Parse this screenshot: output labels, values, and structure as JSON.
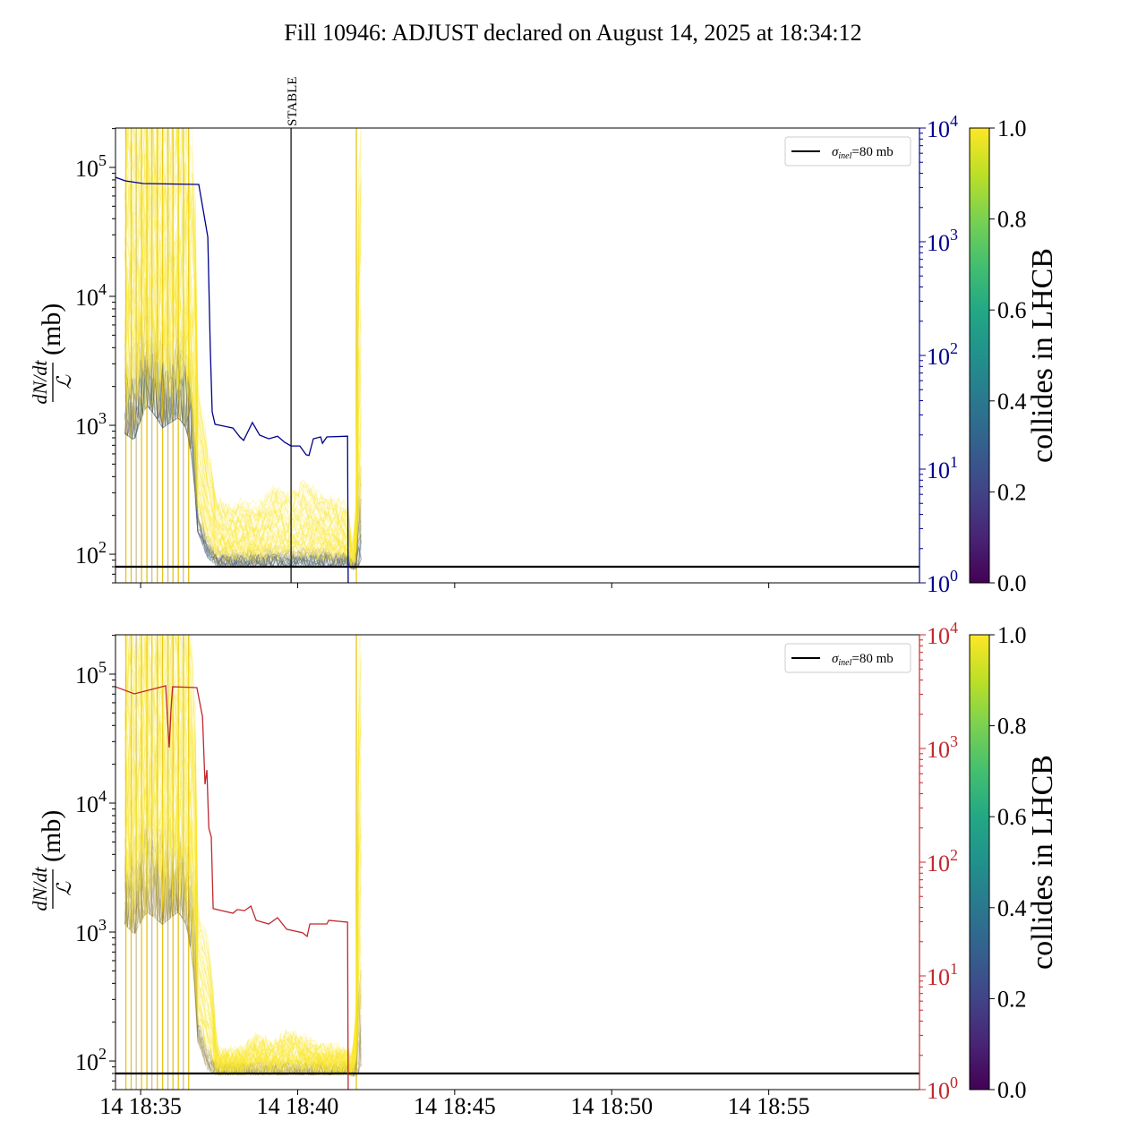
{
  "title": "Fill 10946: ADJUST declared on August 14, 2025 at 18:34:12",
  "chart_data": [
    {
      "type": "line",
      "panel": "top",
      "x_unit": "minutes after 14 18:34:12",
      "xlim": [
        0,
        25.6
      ],
      "x_tick_labels": [
        "14 18:35",
        "14 18:40",
        "14 18:45",
        "14 18:50",
        "14 18:55"
      ],
      "x_tick_values": [
        0.8,
        5.8,
        10.8,
        15.8,
        20.8
      ],
      "ylabel_num": "dN/dt",
      "ylabel_den": "ℒ",
      "ylabel_unit": "(mb)",
      "yscale": "log",
      "ylim": [
        60,
        202000
      ],
      "y_tick_exponents": [
        "2",
        "3",
        "4",
        "5"
      ],
      "y2_scale": "log",
      "y2lim": [
        1,
        10000
      ],
      "y2_tick_exponents": [
        "0",
        "1",
        "2",
        "3",
        "4"
      ],
      "y2_color": "#00008b",
      "annotation": {
        "label": "STABLE",
        "x": 5.59
      },
      "reference_line": {
        "value": 80,
        "legend": "σ",
        "legend_sub": "inel",
        "legend_rest": "=80 mb"
      },
      "bunch_envelope": {
        "t": [
          0.3,
          0.6,
          1.0,
          1.5,
          2.0,
          2.25,
          2.6,
          2.9,
          3.2,
          3.6,
          4.0,
          4.5,
          5.0,
          5.5,
          6.0,
          6.5,
          7.0,
          7.4,
          7.55,
          7.7,
          7.85
        ],
        "lower": [
          900,
          800,
          1500,
          1000,
          1200,
          1000,
          160,
          100,
          85,
          85,
          85,
          85,
          85,
          85,
          85,
          85,
          85,
          85,
          80,
          80,
          100
        ],
        "upper": [
          300000,
          300000,
          300000,
          300000,
          300000,
          250000,
          2000,
          700,
          250,
          220,
          250,
          220,
          320,
          280,
          350,
          280,
          250,
          220,
          90,
          300,
          300000
        ]
      },
      "vertical_lines_t": [
        0.33,
        0.5,
        0.66,
        0.83,
        1.0,
        1.16,
        1.33,
        1.5,
        1.67,
        1.83,
        2.0,
        2.16,
        2.33,
        7.67
      ],
      "series": [
        {
          "name": "right-axis series",
          "color": "#00008b",
          "t": [
            0,
            0.31,
            0.88,
            2.65,
            2.82,
            2.94,
            3.02,
            3.08,
            3.17,
            3.74,
            3.96,
            4.08,
            4.36,
            4.59,
            4.88,
            5.16,
            5.39,
            5.59,
            5.87,
            6.07,
            6.16,
            6.3,
            6.53,
            6.59,
            6.73,
            7.39,
            7.41
          ],
          "values": [
            3690,
            3430,
            3250,
            3190,
            1720,
            1100,
            113,
            31.9,
            24.8,
            23,
            19.2,
            17.9,
            25.7,
            19.9,
            18.5,
            19.5,
            17.2,
            16,
            16,
            13.4,
            13.2,
            18.5,
            19.2,
            16.9,
            19.2,
            19.5,
            1
          ]
        }
      ],
      "colorbar": {
        "label": "collides in LHCB",
        "ticks": [
          "0.0",
          "0.2",
          "0.4",
          "0.6",
          "0.8",
          "1.0"
        ],
        "range": [
          0,
          1
        ]
      }
    },
    {
      "type": "line",
      "panel": "bottom",
      "x_unit": "minutes after 14 18:34:12",
      "xlim": [
        0,
        25.6
      ],
      "x_tick_labels": [
        "14 18:35",
        "14 18:40",
        "14 18:45",
        "14 18:50",
        "14 18:55"
      ],
      "x_tick_values": [
        0.8,
        5.8,
        10.8,
        15.8,
        20.8
      ],
      "ylabel_num": "dN/dt",
      "ylabel_den": "ℒ",
      "ylabel_unit": "(mb)",
      "yscale": "log",
      "ylim": [
        60,
        202000
      ],
      "y_tick_exponents": [
        "2",
        "3",
        "4",
        "5"
      ],
      "y2_scale": "log",
      "y2lim": [
        1,
        10000
      ],
      "y2_tick_exponents": [
        "0",
        "1",
        "2",
        "3",
        "4"
      ],
      "y2_color": "#c0282d",
      "reference_line": {
        "value": 80,
        "legend": "σ",
        "legend_sub": "inel",
        "legend_rest": "=80 mb"
      },
      "bunch_envelope": {
        "t": [
          0.3,
          0.6,
          1.0,
          1.5,
          2.0,
          2.25,
          2.6,
          2.9,
          3.2,
          3.6,
          4.0,
          4.5,
          5.0,
          5.5,
          6.0,
          6.5,
          7.0,
          7.4,
          7.55,
          7.7,
          7.85
        ],
        "lower": [
          1200,
          1000,
          1500,
          1200,
          1500,
          1200,
          150,
          90,
          82,
          82,
          82,
          82,
          82,
          82,
          82,
          82,
          82,
          82,
          80,
          80,
          100
        ],
        "upper": [
          300000,
          300000,
          300000,
          300000,
          300000,
          250000,
          1500,
          900,
          120,
          115,
          120,
          150,
          130,
          160,
          140,
          125,
          120,
          115,
          90,
          300,
          300000
        ]
      },
      "vertical_lines_t": [
        0.33,
        0.5,
        0.66,
        0.83,
        1.0,
        1.16,
        1.33,
        1.5,
        1.67,
        1.83,
        2.0,
        2.16,
        2.33,
        7.67
      ],
      "series": [
        {
          "name": "right-axis series",
          "color": "#c0282d",
          "t": [
            0,
            0.6,
            1.6,
            1.65,
            1.71,
            1.77,
            1.82,
            2.59,
            2.77,
            2.85,
            2.91,
            2.97,
            3.05,
            3.11,
            3.74,
            3.88,
            4.11,
            4.31,
            4.48,
            4.88,
            5.16,
            5.45,
            5.96,
            6.1,
            6.19,
            6.73,
            6.79,
            7.39,
            7.41
          ],
          "values": [
            3490,
            3020,
            3560,
            1900,
            1020,
            2290,
            3490,
            3430,
            1900,
            484,
            646,
            200,
            166,
            39,
            35.6,
            38.3,
            37.5,
            41.1,
            30.8,
            28.6,
            32.5,
            25.7,
            23.9,
            22.2,
            28.6,
            28.6,
            30.8,
            29.7,
            1
          ]
        }
      ],
      "colorbar": {
        "label": "collides in LHCB",
        "ticks": [
          "0.0",
          "0.2",
          "0.4",
          "0.6",
          "0.8",
          "1.0"
        ],
        "range": [
          0,
          1
        ]
      }
    }
  ]
}
